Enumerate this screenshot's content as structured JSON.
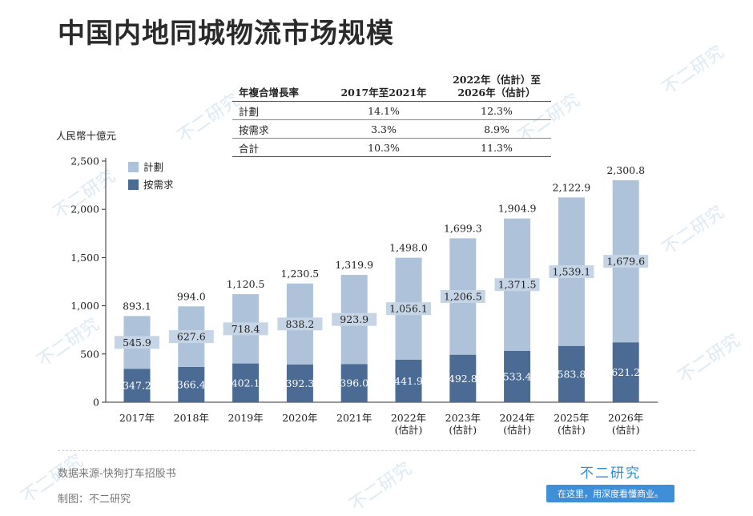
{
  "title": "中国内地同城物流市场规模",
  "watermark_text": "不二研究",
  "table": {
    "headers": [
      "年複合增長率",
      "2017年至2021年",
      "2022年（估計）至\n2026年（估計）"
    ],
    "rows": [
      [
        "計劃",
        "14.1%",
        "12.3%"
      ],
      [
        "按需求",
        "3.3%",
        "8.9%"
      ],
      [
        "合計",
        "10.3%",
        "11.3%"
      ]
    ]
  },
  "chart_data": {
    "type": "bar",
    "stacked": true,
    "title": "",
    "ylabel": "人民幣十億元",
    "ylim": [
      0,
      2500
    ],
    "yticks": [
      0,
      500,
      1000,
      1500,
      2000,
      2500
    ],
    "ytick_labels": [
      "0",
      "500",
      "1,000",
      "1,500",
      "2,000",
      "2,500"
    ],
    "categories": [
      "2017年",
      "2018年",
      "2019年",
      "2020年",
      "2021年",
      "2022年\n(估計)",
      "2023年\n(估計)",
      "2024年\n(估計)",
      "2025年\n(估計)",
      "2026年\n(估計)"
    ],
    "series": [
      {
        "name": "按需求",
        "color": "#4b6b94",
        "values": [
          347.2,
          366.4,
          402.1,
          392.3,
          396.0,
          441.9,
          492.8,
          533.4,
          583.8,
          621.2
        ]
      },
      {
        "name": "計劃",
        "color": "#aec2da",
        "values": [
          545.9,
          627.6,
          718.4,
          838.2,
          923.9,
          1056.1,
          1206.5,
          1371.5,
          1539.1,
          1679.6
        ]
      }
    ],
    "totals": [
      893.1,
      994.0,
      1120.5,
      1230.5,
      1319.9,
      1498.0,
      1699.3,
      1904.9,
      2122.9,
      2300.8
    ],
    "value_labels": {
      "on_demand": [
        "347.2",
        "366.4",
        "402.1",
        "392.3",
        "396.0",
        "441.9",
        "492.8",
        "533.4",
        "583.8",
        "621.2"
      ],
      "planned": [
        "545.9",
        "627.6",
        "718.4",
        "838.2",
        "923.9",
        "1,056.1",
        "1,206.5",
        "1,371.5",
        "1,539.1",
        "1,679.6"
      ],
      "totals": [
        "893.1",
        "994.0",
        "1,120.5",
        "1,230.5",
        "1,319.9",
        "1,498.0",
        "1,699.3",
        "1,904.9",
        "2,122.9",
        "2,300.8"
      ]
    },
    "legend": [
      {
        "label": "計劃",
        "color": "#aec2da"
      },
      {
        "label": "按需求",
        "color": "#4b6b94"
      }
    ],
    "legend_position": "top-left"
  },
  "footer": {
    "source": "数据来源-快狗打车招股书",
    "credit": "制图：不二研究",
    "brand_name": "不二研究",
    "brand_slogan": "在这里，用深度看懂商业。"
  }
}
